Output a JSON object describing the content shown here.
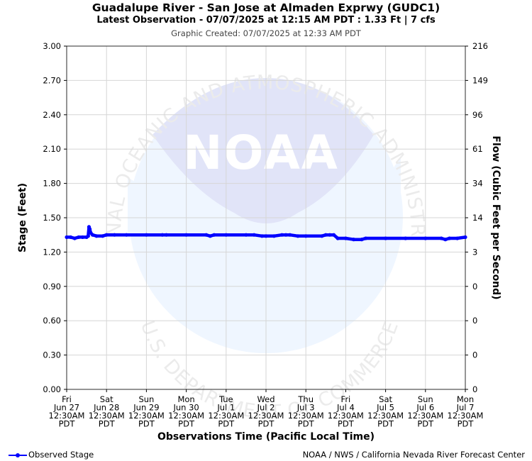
{
  "chart_data": {
    "type": "line",
    "title": "Guadalupe River - San Jose at Almaden Exprwy (GUDC1)",
    "subtitle": "Latest Observation - 07/07/2025 at 12:15 AM PDT : 1.33 Ft | 7 cfs",
    "created": "Graphic Created: 07/07/2025 at 12:33 AM PDT",
    "xlabel": "Observations Time (Pacific Local Time)",
    "ylabel": "Stage (Feet)",
    "y2label": "Flow (Cubic Feet per Second)",
    "ylim": [
      0,
      3
    ],
    "xlim": [
      0,
      10
    ],
    "grid": true,
    "y_ticks": [
      "0.00",
      "0.30",
      "0.60",
      "0.90",
      "1.20",
      "1.50",
      "1.80",
      "2.10",
      "2.40",
      "2.70",
      "3.00"
    ],
    "y2_ticks": [
      "0",
      "0",
      "0",
      "0",
      "3",
      "14",
      "34",
      "61",
      "96",
      "149",
      "216"
    ],
    "x_ticks": [
      [
        "Fri",
        "Jun 27",
        "12:30AM",
        "PDT"
      ],
      [
        "Sat",
        "Jun 28",
        "12:30AM",
        "PDT"
      ],
      [
        "Sun",
        "Jun 29",
        "12:30AM",
        "PDT"
      ],
      [
        "Mon",
        "Jun 30",
        "12:30AM",
        "PDT"
      ],
      [
        "Tue",
        "Jul 1",
        "12:30AM",
        "PDT"
      ],
      [
        "Wed",
        "Jul 2",
        "12:30AM",
        "PDT"
      ],
      [
        "Thu",
        "Jul 3",
        "12:30AM",
        "PDT"
      ],
      [
        "Fri",
        "Jul 4",
        "12:30AM",
        "PDT"
      ],
      [
        "Sat",
        "Jul 5",
        "12:30AM",
        "PDT"
      ],
      [
        "Sun",
        "Jul 6",
        "12:30AM",
        "PDT"
      ],
      [
        "Mon",
        "Jul 7",
        "12:30AM",
        "PDT"
      ]
    ],
    "series": [
      {
        "name": "Observed Stage",
        "color": "#0000ff",
        "x": [
          0.0,
          0.1,
          0.2,
          0.3,
          0.4,
          0.5,
          0.54,
          0.56,
          0.58,
          0.6,
          0.65,
          0.75,
          0.9,
          1.0,
          1.2,
          1.5,
          2.0,
          2.4,
          2.5,
          3.0,
          3.5,
          3.6,
          3.7,
          4.0,
          4.5,
          4.7,
          4.9,
          5.0,
          5.2,
          5.4,
          5.5,
          5.6,
          5.8,
          6.0,
          6.4,
          6.5,
          6.6,
          6.7,
          6.8,
          7.0,
          7.2,
          7.4,
          7.5,
          8.0,
          8.5,
          9.0,
          9.4,
          9.5,
          9.6,
          9.8,
          10.0
        ],
        "y": [
          1.33,
          1.33,
          1.32,
          1.33,
          1.33,
          1.33,
          1.34,
          1.42,
          1.4,
          1.37,
          1.35,
          1.34,
          1.34,
          1.35,
          1.35,
          1.35,
          1.35,
          1.35,
          1.35,
          1.35,
          1.35,
          1.34,
          1.35,
          1.35,
          1.35,
          1.35,
          1.34,
          1.34,
          1.34,
          1.35,
          1.35,
          1.35,
          1.34,
          1.34,
          1.34,
          1.35,
          1.35,
          1.35,
          1.32,
          1.32,
          1.31,
          1.31,
          1.32,
          1.32,
          1.32,
          1.32,
          1.32,
          1.31,
          1.32,
          1.32,
          1.33
        ]
      }
    ]
  },
  "legend": {
    "label": "Observed Stage"
  },
  "footer": {
    "credit": "NOAA / NWS / California Nevada River Forecast Center"
  },
  "watermark": {
    "logo_text": "NOAA",
    "top_arc": "NATIONAL OCEANIC AND ATMOSPHERIC ADMINISTRATION",
    "bottom_arc": "U.S. DEPARTMENT OF COMMERCE"
  }
}
